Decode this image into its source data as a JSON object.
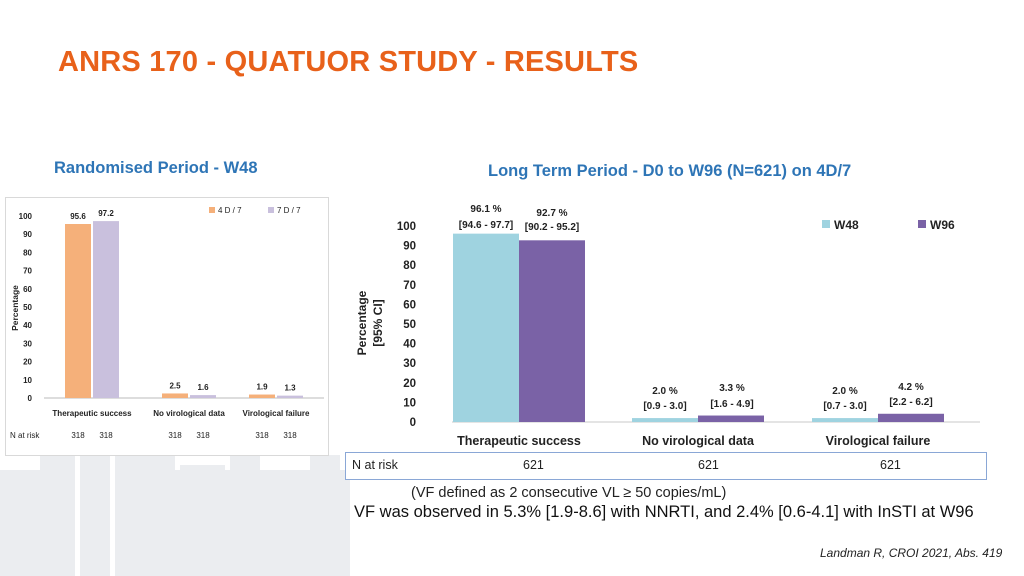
{
  "title": "ANRS 170 - QUATUOR STUDY - RESULTS",
  "left_subtitle": "Randomised Period - W48",
  "right_subtitle": "Long Term Period - D0 to W96 (N=621) on 4D/7",
  "colors": {
    "title": "#e8611a",
    "subtitle": "#2e75b6",
    "left_4d": "#f5b07a",
    "left_7d": "#c9c0dd",
    "right_w48": "#9fd3e0",
    "right_w96": "#7a62a6"
  },
  "chart_data": [
    {
      "type": "bar",
      "categories": [
        "Therapeutic success",
        "No virological data",
        "Virological failure"
      ],
      "series": [
        {
          "name": "4 D / 7",
          "values": [
            95.6,
            2.5,
            1.9
          ],
          "labels": [
            "95.6",
            "2.5",
            "1.9"
          ]
        },
        {
          "name": "7 D / 7",
          "values": [
            97.2,
            1.6,
            1.3
          ],
          "labels": [
            "97.2",
            "1.6",
            "1.3"
          ]
        }
      ],
      "ylabel": "Percentage",
      "ylim": [
        0,
        100
      ],
      "yticks": [
        "0",
        "10",
        "20",
        "30",
        "40",
        "50",
        "60",
        "70",
        "80",
        "90",
        "100"
      ],
      "legend": "top-right",
      "at_risk_label": "N at risk",
      "at_risk": [
        [
          "318",
          "318"
        ],
        [
          "318",
          "318"
        ],
        [
          "318",
          "318"
        ]
      ]
    },
    {
      "type": "bar",
      "categories": [
        "Therapeutic success",
        "No virological data",
        "Virological failure"
      ],
      "series": [
        {
          "name": "W48",
          "values": [
            96.1,
            2.0,
            2.0
          ],
          "labels": [
            "96.1 %",
            "2.0 %",
            "2.0 %"
          ],
          "ci": [
            "[94.6 - 97.7]",
            "[0.9 - 3.0]",
            "[0.7 - 3.0]"
          ]
        },
        {
          "name": "W96",
          "values": [
            92.7,
            3.3,
            4.2
          ],
          "labels": [
            "92.7 %",
            "3.3 %",
            "4.2 %"
          ],
          "ci": [
            "[90.2 - 95.2]",
            "[1.6 - 4.9]",
            "[2.2 - 6.2]"
          ]
        }
      ],
      "ylabel": "Percentage",
      "ylabel2": "[95% CI]",
      "ylim": [
        0,
        100
      ],
      "yticks": [
        "0",
        "10",
        "20",
        "30",
        "40",
        "50",
        "60",
        "70",
        "80",
        "90",
        "100"
      ],
      "legend": "top-right",
      "at_risk_label": "N at risk",
      "at_risk": [
        "621",
        "621",
        "621"
      ]
    }
  ],
  "notes": {
    "vf_definition": "(VF defined as 2 consecutive VL ≥ 50 copies/mL)",
    "vf_observed": "VF was observed in 5.3% [1.9-8.6] with NNRTI, and 2.4% [0.6-4.1] with InSTI at W96"
  },
  "citation": "Landman R, CROI 2021, Abs. 419"
}
